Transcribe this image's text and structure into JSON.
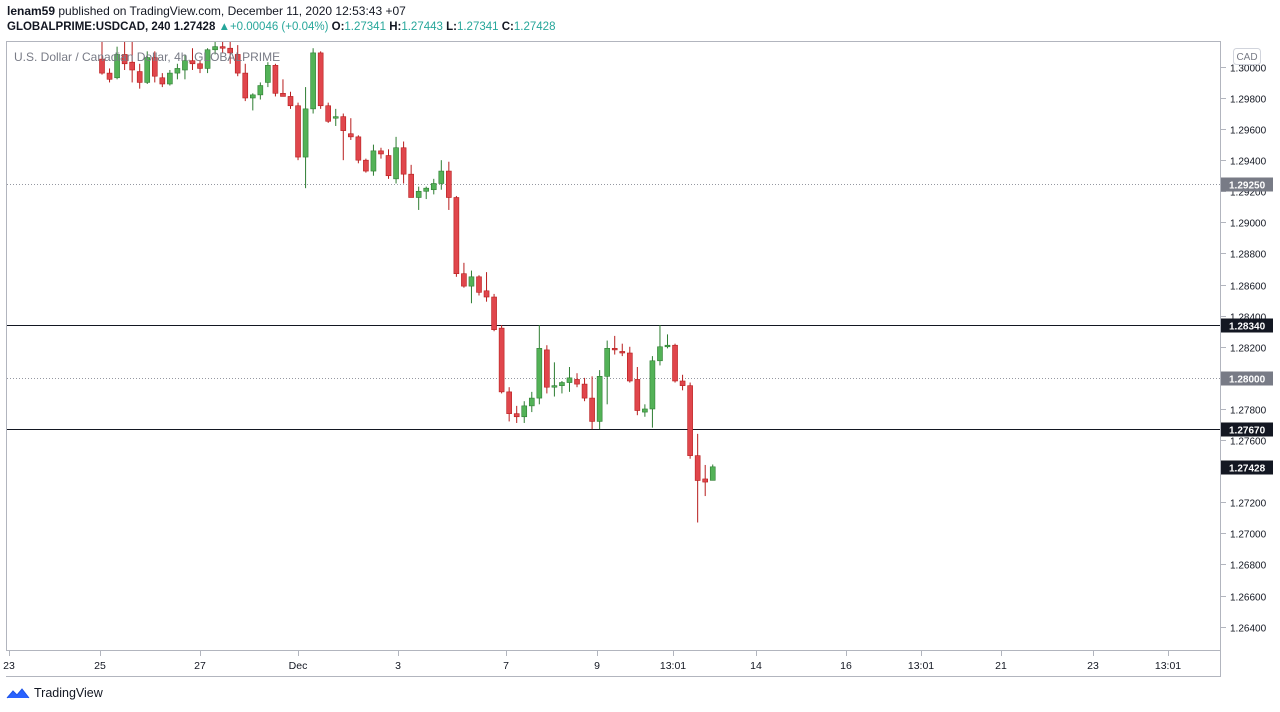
{
  "header": {
    "author": "lenam59",
    "published_text": "published on TradingView.com, December 11, 2020 12:53:43 +07",
    "symbol": "GLOBALPRIME:USDCAD, 240",
    "last": "1.27428",
    "change_arrow": "▲",
    "change": "+0.00046 (+0.04%)",
    "o_label": "O:",
    "o": "1.27341",
    "h_label": "H:",
    "h": "1.27443",
    "l_label": "L:",
    "l": "1.27341",
    "c_label": "C:",
    "c": "1.27428"
  },
  "footer": {
    "brand": "TradingView",
    "logo_icon": "tradingview-logo-icon"
  },
  "colors": {
    "up": "#53b257",
    "down": "#e0464c",
    "up_border": "#2e7d32",
    "down_border": "#b71c1c",
    "accent": "#26a69a",
    "grid": "#f0f3fa"
  },
  "chart_data": {
    "type": "candlestick",
    "title": "U.S. Dollar / Canadian Dollar, 4h, GLOBALPRIME",
    "currency_label": "CAD",
    "ylim": [
      1.2625,
      1.3016
    ],
    "yticks": [
      "1.30000",
      "1.29800",
      "1.29600",
      "1.29400",
      "1.29200",
      "1.29000",
      "1.28800",
      "1.28600",
      "1.28400",
      "1.28200",
      "1.28000",
      "1.27800",
      "1.27600",
      "1.27200",
      "1.27000",
      "1.26800",
      "1.26600",
      "1.26400"
    ],
    "xticks": [
      "23",
      "25",
      "27",
      "Dec",
      "3",
      "7",
      "9",
      "13:01",
      "14",
      "16",
      "13:01",
      "21",
      "23",
      "13:01"
    ],
    "horizontal_lines": [
      {
        "value": 1.2834,
        "label": "1.28340",
        "style": "solid"
      },
      {
        "value": 1.2767,
        "label": "1.27670",
        "style": "solid"
      },
      {
        "value": 1.2925,
        "label": "1.29250",
        "style": "dotted"
      },
      {
        "value": 1.28,
        "label": "1.28000",
        "style": "dotted"
      }
    ],
    "last_price": {
      "value": 1.27428,
      "label": "1.27428"
    },
    "candles": [
      [
        1.3005,
        1.3016,
        1.2995,
        1.2996
      ],
      [
        1.2996,
        1.2999,
        1.299,
        1.2992
      ],
      [
        1.2993,
        1.3013,
        1.2992,
        1.3008
      ],
      [
        1.3008,
        1.3016,
        1.2998,
        1.3002
      ],
      [
        1.3003,
        1.3016,
        1.299,
        1.2998
      ],
      [
        1.2997,
        1.3002,
        1.2986,
        1.299
      ],
      [
        1.299,
        1.301,
        1.2989,
        1.3006
      ],
      [
        1.3006,
        1.301,
        1.299,
        1.2994
      ],
      [
        1.2993,
        1.2996,
        1.2987,
        1.2989
      ],
      [
        1.2989,
        1.2998,
        1.2988,
        1.2996
      ],
      [
        1.2996,
        1.3002,
        1.2992,
        1.2999
      ],
      [
        1.2998,
        1.3008,
        1.2992,
        1.3004
      ],
      [
        1.3004,
        1.3012,
        1.2998,
        1.3002
      ],
      [
        1.3002,
        1.3004,
        1.2996,
        1.2999
      ],
      [
        1.2999,
        1.3012,
        1.2996,
        1.3011
      ],
      [
        1.3011,
        1.3016,
        1.3008,
        1.3013
      ],
      [
        1.3013,
        1.3016,
        1.3009,
        1.3012
      ],
      [
        1.3012,
        1.3016,
        1.3002,
        1.3009
      ],
      [
        1.3008,
        1.3014,
        1.2994,
        1.2996
      ],
      [
        1.2996,
        1.3002,
        1.2978,
        1.298
      ],
      [
        1.298,
        1.2983,
        1.2972,
        1.2982
      ],
      [
        1.2982,
        1.299,
        1.2979,
        1.2988
      ],
      [
        1.299,
        1.3003,
        1.2987,
        1.3001
      ],
      [
        1.3001,
        1.3002,
        1.2981,
        1.2983
      ],
      [
        1.2983,
        1.2992,
        1.2981,
        1.2981
      ],
      [
        1.2981,
        1.2984,
        1.2973,
        1.2975
      ],
      [
        1.2975,
        1.2977,
        1.294,
        1.2942
      ],
      [
        1.2942,
        1.2987,
        1.2922,
        1.2973
      ],
      [
        1.2973,
        1.3012,
        1.297,
        1.3009
      ],
      [
        1.3009,
        1.301,
        1.2973,
        1.2975
      ],
      [
        1.2975,
        1.2977,
        1.2964,
        1.2965
      ],
      [
        1.2967,
        1.2973,
        1.2962,
        1.2968
      ],
      [
        1.2968,
        1.297,
        1.294,
        1.2959
      ],
      [
        1.2957,
        1.2967,
        1.2953,
        1.2955
      ],
      [
        1.2955,
        1.2956,
        1.2938,
        1.294
      ],
      [
        1.294,
        1.2941,
        1.2932,
        1.2933
      ],
      [
        1.2933,
        1.295,
        1.293,
        1.2946
      ],
      [
        1.2946,
        1.2948,
        1.2941,
        1.2944
      ],
      [
        1.2943,
        1.2947,
        1.2928,
        1.293
      ],
      [
        1.2928,
        1.2955,
        1.2925,
        1.2948
      ],
      [
        1.2948,
        1.2952,
        1.2925,
        1.2931
      ],
      [
        1.2931,
        1.2937,
        1.2917,
        1.2916
      ],
      [
        1.2916,
        1.2923,
        1.2908,
        1.292
      ],
      [
        1.292,
        1.2923,
        1.2915,
        1.2922
      ],
      [
        1.2921,
        1.2928,
        1.2918,
        1.2925
      ],
      [
        1.2925,
        1.294,
        1.2921,
        1.2933
      ],
      [
        1.2933,
        1.2939,
        1.2908,
        1.2916
      ],
      [
        1.2916,
        1.2917,
        1.2865,
        1.2867
      ],
      [
        1.2867,
        1.2874,
        1.2858,
        1.2859
      ],
      [
        1.2859,
        1.2869,
        1.2848,
        1.2865
      ],
      [
        1.2865,
        1.2866,
        1.2853,
        1.2855
      ],
      [
        1.2856,
        1.2868,
        1.2849,
        1.2852
      ],
      [
        1.2852,
        1.2854,
        1.283,
        1.2831
      ],
      [
        1.2832,
        1.2834,
        1.279,
        1.2791
      ],
      [
        1.2791,
        1.2794,
        1.2772,
        1.2777
      ],
      [
        1.2777,
        1.2782,
        1.2771,
        1.2775
      ],
      [
        1.2775,
        1.2785,
        1.2771,
        1.2782
      ],
      [
        1.2782,
        1.2791,
        1.2778,
        1.2787
      ],
      [
        1.2787,
        1.2834,
        1.2783,
        1.2819
      ],
      [
        1.2818,
        1.2821,
        1.279,
        1.2794
      ],
      [
        1.2794,
        1.281,
        1.2788,
        1.2795
      ],
      [
        1.2795,
        1.2798,
        1.279,
        1.2797
      ],
      [
        1.2797,
        1.2807,
        1.2791,
        1.28
      ],
      [
        1.2799,
        1.2803,
        1.2794,
        1.2796
      ],
      [
        1.2796,
        1.28,
        1.2785,
        1.2787
      ],
      [
        1.2787,
        1.2801,
        1.2767,
        1.2772
      ],
      [
        1.2772,
        1.2805,
        1.2767,
        1.2801
      ],
      [
        1.2801,
        1.2824,
        1.2783,
        1.2819
      ],
      [
        1.2819,
        1.2827,
        1.2815,
        1.2818
      ],
      [
        1.2817,
        1.2822,
        1.2814,
        1.2816
      ],
      [
        1.2816,
        1.282,
        1.2797,
        1.2798
      ],
      [
        1.2799,
        1.2807,
        1.2776,
        1.2779
      ],
      [
        1.2778,
        1.2783,
        1.2775,
        1.278
      ],
      [
        1.278,
        1.2814,
        1.2768,
        1.2811
      ],
      [
        1.2811,
        1.2834,
        1.2808,
        1.282
      ],
      [
        1.282,
        1.2828,
        1.2819,
        1.2821
      ],
      [
        1.2821,
        1.2822,
        1.2797,
        1.2798
      ],
      [
        1.2798,
        1.2802,
        1.2792,
        1.2795
      ],
      [
        1.2795,
        1.2797,
        1.2748,
        1.275
      ],
      [
        1.275,
        1.2764,
        1.2707,
        1.2734
      ],
      [
        1.2735,
        1.2744,
        1.2724,
        1.2733
      ],
      [
        1.27341,
        1.27443,
        1.27341,
        1.27428
      ]
    ]
  }
}
